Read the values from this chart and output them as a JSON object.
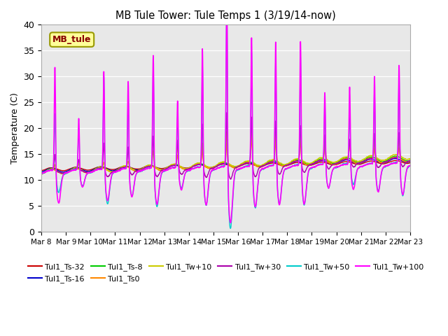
{
  "title": "MB Tule Tower: Tule Temps 1 (3/19/14-now)",
  "ylabel": "Temperature (C)",
  "ylim": [
    0,
    40
  ],
  "yticks": [
    0,
    5,
    10,
    15,
    20,
    25,
    30,
    35,
    40
  ],
  "x_labels": [
    "Mar 8",
    "Mar 9",
    "Mar 10",
    "Mar 11",
    "Mar 12",
    "Mar 13",
    "Mar 14",
    "Mar 15",
    "Mar 16",
    "Mar 17",
    "Mar 18",
    "Mar 19",
    "Mar 20",
    "Mar 21",
    "Mar 22",
    "Mar 23"
  ],
  "bg_color": "#e8e8e8",
  "legend_label": "MB_tule",
  "legend_color": "#880000",
  "legend_bg": "#ffff99",
  "legend_border": "#999900"
}
